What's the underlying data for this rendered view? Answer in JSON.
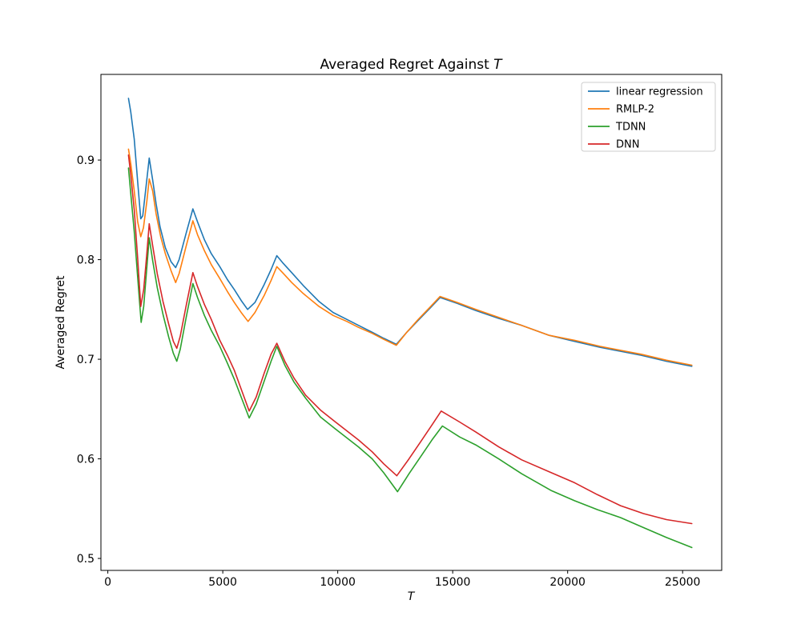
{
  "figure": {
    "title_prefix": "Averaged Regret Against ",
    "title_math": "T",
    "xlabel_math": "T",
    "ylabel": "Averaged Regret"
  },
  "chart_data": {
    "type": "line",
    "title": "Averaged Regret Against T",
    "xlabel": "T",
    "ylabel": "Averaged Regret",
    "xlim": [
      -300,
      26700
    ],
    "ylim": [
      0.488,
      0.986
    ],
    "x_ticks": [
      0,
      5000,
      10000,
      15000,
      20000,
      25000
    ],
    "x_tick_labels": [
      "0",
      "5000",
      "10000",
      "15000",
      "20000",
      "25000"
    ],
    "y_ticks": [
      0.5,
      0.6,
      0.7,
      0.8,
      0.9
    ],
    "y_tick_labels": [
      "0.5",
      "0.6",
      "0.7",
      "0.8",
      "0.9"
    ],
    "grid": false,
    "legend_position": "upper right",
    "axis_color": "#000000",
    "legend_border_color": "#cccccc",
    "series": [
      {
        "name": "linear regression",
        "color": "#1f77b4",
        "points": [
          [
            900,
            0.962
          ],
          [
            1000,
            0.948
          ],
          [
            1150,
            0.921
          ],
          [
            1300,
            0.878
          ],
          [
            1430,
            0.841
          ],
          [
            1520,
            0.844
          ],
          [
            1650,
            0.871
          ],
          [
            1800,
            0.902
          ],
          [
            1950,
            0.88
          ],
          [
            2100,
            0.856
          ],
          [
            2270,
            0.833
          ],
          [
            2500,
            0.812
          ],
          [
            2750,
            0.798
          ],
          [
            2950,
            0.792
          ],
          [
            3100,
            0.8
          ],
          [
            3400,
            0.826
          ],
          [
            3700,
            0.851
          ],
          [
            3900,
            0.838
          ],
          [
            4200,
            0.82
          ],
          [
            4500,
            0.806
          ],
          [
            4870,
            0.793
          ],
          [
            5200,
            0.78
          ],
          [
            5500,
            0.77
          ],
          [
            5800,
            0.759
          ],
          [
            6080,
            0.75
          ],
          [
            6400,
            0.757
          ],
          [
            6800,
            0.775
          ],
          [
            7100,
            0.79
          ],
          [
            7350,
            0.804
          ],
          [
            7600,
            0.797
          ],
          [
            8000,
            0.787
          ],
          [
            8500,
            0.774
          ],
          [
            9185,
            0.758
          ],
          [
            9800,
            0.747
          ],
          [
            10400,
            0.74
          ],
          [
            10900,
            0.734
          ],
          [
            11500,
            0.727
          ],
          [
            12000,
            0.721
          ],
          [
            12550,
            0.715
          ],
          [
            13000,
            0.727
          ],
          [
            13500,
            0.739
          ],
          [
            14000,
            0.751
          ],
          [
            14450,
            0.762
          ],
          [
            15200,
            0.756
          ],
          [
            16000,
            0.749
          ],
          [
            17000,
            0.741
          ],
          [
            18000,
            0.734
          ],
          [
            19200,
            0.724
          ],
          [
            20300,
            0.718
          ],
          [
            21400,
            0.712
          ],
          [
            22300,
            0.708
          ],
          [
            23200,
            0.704
          ],
          [
            24300,
            0.698
          ],
          [
            25400,
            0.693
          ]
        ]
      },
      {
        "name": "RMLP-2",
        "color": "#ff7f0e",
        "points": [
          [
            900,
            0.911
          ],
          [
            1000,
            0.896
          ],
          [
            1150,
            0.869
          ],
          [
            1300,
            0.838
          ],
          [
            1430,
            0.823
          ],
          [
            1550,
            0.832
          ],
          [
            1700,
            0.859
          ],
          [
            1800,
            0.881
          ],
          [
            1950,
            0.869
          ],
          [
            2100,
            0.846
          ],
          [
            2300,
            0.823
          ],
          [
            2500,
            0.806
          ],
          [
            2750,
            0.789
          ],
          [
            2950,
            0.777
          ],
          [
            3100,
            0.786
          ],
          [
            3400,
            0.813
          ],
          [
            3700,
            0.839
          ],
          [
            3900,
            0.825
          ],
          [
            4200,
            0.809
          ],
          [
            4500,
            0.795
          ],
          [
            4870,
            0.781
          ],
          [
            5200,
            0.768
          ],
          [
            5500,
            0.757
          ],
          [
            5800,
            0.747
          ],
          [
            6100,
            0.738
          ],
          [
            6400,
            0.747
          ],
          [
            6800,
            0.764
          ],
          [
            7100,
            0.779
          ],
          [
            7350,
            0.793
          ],
          [
            7600,
            0.787
          ],
          [
            8000,
            0.777
          ],
          [
            8500,
            0.766
          ],
          [
            9185,
            0.753
          ],
          [
            9800,
            0.744
          ],
          [
            10400,
            0.738
          ],
          [
            10900,
            0.732
          ],
          [
            11500,
            0.726
          ],
          [
            12000,
            0.72
          ],
          [
            12550,
            0.714
          ],
          [
            13000,
            0.727
          ],
          [
            13500,
            0.74
          ],
          [
            14000,
            0.752
          ],
          [
            14450,
            0.763
          ],
          [
            15200,
            0.757
          ],
          [
            16000,
            0.75
          ],
          [
            17000,
            0.742
          ],
          [
            18000,
            0.734
          ],
          [
            19200,
            0.724
          ],
          [
            20300,
            0.719
          ],
          [
            21400,
            0.713
          ],
          [
            22300,
            0.709
          ],
          [
            23200,
            0.705
          ],
          [
            24300,
            0.699
          ],
          [
            25400,
            0.694
          ]
        ]
      },
      {
        "name": "TDNN",
        "color": "#2ca02c",
        "points": [
          [
            900,
            0.892
          ],
          [
            1000,
            0.866
          ],
          [
            1150,
            0.828
          ],
          [
            1300,
            0.782
          ],
          [
            1450,
            0.737
          ],
          [
            1560,
            0.753
          ],
          [
            1700,
            0.793
          ],
          [
            1800,
            0.822
          ],
          [
            1950,
            0.799
          ],
          [
            2150,
            0.772
          ],
          [
            2400,
            0.745
          ],
          [
            2650,
            0.722
          ],
          [
            2850,
            0.706
          ],
          [
            3000,
            0.698
          ],
          [
            3150,
            0.71
          ],
          [
            3400,
            0.741
          ],
          [
            3700,
            0.776
          ],
          [
            3900,
            0.762
          ],
          [
            4200,
            0.744
          ],
          [
            4500,
            0.729
          ],
          [
            4870,
            0.713
          ],
          [
            5200,
            0.696
          ],
          [
            5500,
            0.68
          ],
          [
            5800,
            0.662
          ],
          [
            6150,
            0.641
          ],
          [
            6450,
            0.655
          ],
          [
            6800,
            0.678
          ],
          [
            7100,
            0.698
          ],
          [
            7350,
            0.713
          ],
          [
            7700,
            0.694
          ],
          [
            8100,
            0.677
          ],
          [
            8600,
            0.661
          ],
          [
            9250,
            0.642
          ],
          [
            9900,
            0.63
          ],
          [
            10900,
            0.612
          ],
          [
            11500,
            0.6
          ],
          [
            12000,
            0.586
          ],
          [
            12600,
            0.567
          ],
          [
            13100,
            0.585
          ],
          [
            13600,
            0.602
          ],
          [
            14100,
            0.619
          ],
          [
            14550,
            0.633
          ],
          [
            15300,
            0.622
          ],
          [
            16000,
            0.614
          ],
          [
            17000,
            0.6
          ],
          [
            18000,
            0.585
          ],
          [
            19300,
            0.568
          ],
          [
            20300,
            0.558
          ],
          [
            21300,
            0.549
          ],
          [
            22300,
            0.541
          ],
          [
            23300,
            0.531
          ],
          [
            24300,
            0.521
          ],
          [
            25400,
            0.511
          ]
        ]
      },
      {
        "name": "DNN",
        "color": "#d62728",
        "points": [
          [
            900,
            0.905
          ],
          [
            1000,
            0.885
          ],
          [
            1150,
            0.85
          ],
          [
            1300,
            0.801
          ],
          [
            1430,
            0.753
          ],
          [
            1560,
            0.77
          ],
          [
            1700,
            0.807
          ],
          [
            1800,
            0.836
          ],
          [
            1950,
            0.814
          ],
          [
            2150,
            0.786
          ],
          [
            2400,
            0.758
          ],
          [
            2650,
            0.735
          ],
          [
            2850,
            0.718
          ],
          [
            3000,
            0.711
          ],
          [
            3150,
            0.723
          ],
          [
            3400,
            0.753
          ],
          [
            3700,
            0.787
          ],
          [
            3900,
            0.773
          ],
          [
            4200,
            0.755
          ],
          [
            4500,
            0.74
          ],
          [
            4870,
            0.719
          ],
          [
            5200,
            0.704
          ],
          [
            5500,
            0.689
          ],
          [
            5800,
            0.67
          ],
          [
            6150,
            0.648
          ],
          [
            6450,
            0.662
          ],
          [
            6800,
            0.686
          ],
          [
            7100,
            0.705
          ],
          [
            7350,
            0.716
          ],
          [
            7700,
            0.698
          ],
          [
            8100,
            0.681
          ],
          [
            8600,
            0.664
          ],
          [
            9250,
            0.649
          ],
          [
            9900,
            0.637
          ],
          [
            10900,
            0.619
          ],
          [
            11500,
            0.607
          ],
          [
            12000,
            0.595
          ],
          [
            12570,
            0.583
          ],
          [
            13100,
            0.6
          ],
          [
            13600,
            0.617
          ],
          [
            14100,
            0.634
          ],
          [
            14500,
            0.648
          ],
          [
            15300,
            0.637
          ],
          [
            16000,
            0.627
          ],
          [
            17000,
            0.612
          ],
          [
            18000,
            0.599
          ],
          [
            19300,
            0.586
          ],
          [
            20300,
            0.576
          ],
          [
            21300,
            0.564
          ],
          [
            22300,
            0.553
          ],
          [
            23300,
            0.545
          ],
          [
            24300,
            0.539
          ],
          [
            25400,
            0.535
          ]
        ]
      }
    ]
  }
}
